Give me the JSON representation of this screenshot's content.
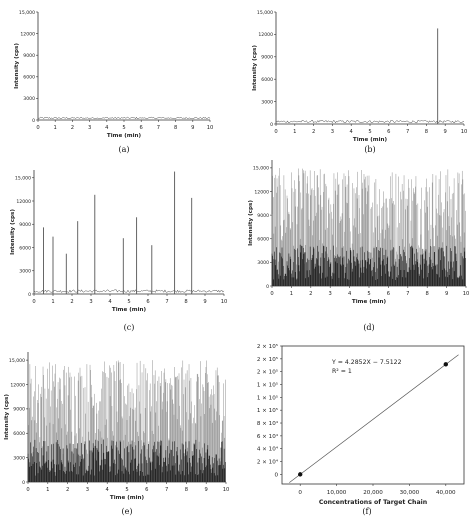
{
  "chart_data": [
    {
      "id": "a",
      "type": "line",
      "caption": "(a)",
      "xlabel": "Time (min)",
      "ylabel": "Intensity (cps)",
      "xlim": [
        0,
        10
      ],
      "ylim": [
        0,
        15000
      ],
      "xticks": [
        "0",
        "1",
        "2",
        "3",
        "4",
        "5",
        "6",
        "7",
        "8",
        "9",
        "10"
      ],
      "yticks": [
        "0",
        "3000",
        "6000",
        "9000",
        "12000",
        "15,000"
      ],
      "baseline": 150,
      "noise": 250,
      "peaks": []
    },
    {
      "id": "b",
      "type": "line",
      "caption": "(b)",
      "xlabel": "Time (min)",
      "ylabel": "Intensity (cps)",
      "xlim": [
        0,
        10
      ],
      "ylim": [
        0,
        15000
      ],
      "xticks": [
        "0",
        "1",
        "2",
        "3",
        "4",
        "5",
        "6",
        "7",
        "8",
        "9",
        "10"
      ],
      "yticks": [
        "0",
        "3000",
        "6000",
        "9000",
        "12000",
        "15,000"
      ],
      "baseline": 150,
      "noise": 350,
      "peaks": [
        {
          "x": 8.6,
          "y": 12800
        }
      ]
    },
    {
      "id": "c",
      "type": "line",
      "caption": "(c)",
      "xlabel": "Time (min)",
      "ylabel": "Intensity (cps)",
      "xlim": [
        0,
        10
      ],
      "ylim": [
        0,
        16000
      ],
      "xticks": [
        "0",
        "1",
        "2",
        "3",
        "4",
        "5",
        "6",
        "7",
        "8",
        "9",
        "10"
      ],
      "yticks": [
        "0",
        "3000",
        "6000",
        "9000",
        "12000",
        "15,000"
      ],
      "baseline": 200,
      "noise": 350,
      "peaks": [
        {
          "x": 0.5,
          "y": 8600
        },
        {
          "x": 1.0,
          "y": 7400
        },
        {
          "x": 1.7,
          "y": 5200
        },
        {
          "x": 2.3,
          "y": 9400
        },
        {
          "x": 3.2,
          "y": 12800
        },
        {
          "x": 4.7,
          "y": 7200
        },
        {
          "x": 5.4,
          "y": 9900
        },
        {
          "x": 6.2,
          "y": 6300
        },
        {
          "x": 7.4,
          "y": 15800
        },
        {
          "x": 8.3,
          "y": 12400
        }
      ]
    },
    {
      "id": "d",
      "type": "line",
      "caption": "(d)",
      "xlabel": "Time (min)",
      "ylabel": "Intensity (cps)",
      "xlim": [
        0,
        10
      ],
      "ylim": [
        0,
        16000
      ],
      "xticks": [
        "0",
        "1",
        "2",
        "3",
        "4",
        "5",
        "6",
        "7",
        "8",
        "9",
        "10"
      ],
      "yticks": [
        "0",
        "3000",
        "6000",
        "9000",
        "12000",
        "15,000"
      ],
      "dense": true,
      "max": 15000
    },
    {
      "id": "e",
      "type": "line",
      "caption": "(e)",
      "xlabel": "Time (min)",
      "ylabel": "Intensity (cps)",
      "xlim": [
        0,
        10
      ],
      "ylim": [
        0,
        16000
      ],
      "xticks": [
        "0",
        "1",
        "2",
        "3",
        "4",
        "5",
        "6",
        "7",
        "8",
        "9",
        "10"
      ],
      "yticks": [
        "0",
        "3000",
        "6000",
        "9000",
        "12000",
        "15,000"
      ],
      "dense": true,
      "max": 15000
    },
    {
      "id": "f",
      "type": "scatter",
      "caption": "(f)",
      "xlabel": "Concentrations of Target Chain",
      "ylabel": "",
      "xlim": [
        -5000,
        45000
      ],
      "ylim": [
        -15000,
        200000
      ],
      "xticks": [
        {
          "v": 0,
          "label": "0"
        },
        {
          "v": 10000,
          "label": "10,000"
        },
        {
          "v": 20000,
          "label": "20,000"
        },
        {
          "v": 30000,
          "label": "30,000"
        },
        {
          "v": 40000,
          "label": "40,000"
        }
      ],
      "yticks": [
        {
          "v": 0,
          "label": "0"
        },
        {
          "v": 20000,
          "label": "2 × 10⁴"
        },
        {
          "v": 40000,
          "label": "4 × 10⁴"
        },
        {
          "v": 60000,
          "label": "6 × 10⁴"
        },
        {
          "v": 80000,
          "label": "8 × 10⁴"
        },
        {
          "v": 100000,
          "label": "1 × 10⁵"
        },
        {
          "v": 120000,
          "label": "1 × 10⁵"
        },
        {
          "v": 140000,
          "label": "1 × 10⁵"
        },
        {
          "v": 160000,
          "label": "2 × 10⁵"
        },
        {
          "v": 180000,
          "label": "2 × 10⁵"
        },
        {
          "v": 200000,
          "label": "2 × 10⁵"
        }
      ],
      "points": [
        {
          "x": 0,
          "y": 0
        },
        {
          "x": 40000,
          "y": 171400
        }
      ],
      "fit": {
        "slope": 4.2852,
        "intercept": -7.5122
      },
      "equation": "Y = 4.2852X − 7.5122",
      "r2": "R² = 1"
    }
  ]
}
